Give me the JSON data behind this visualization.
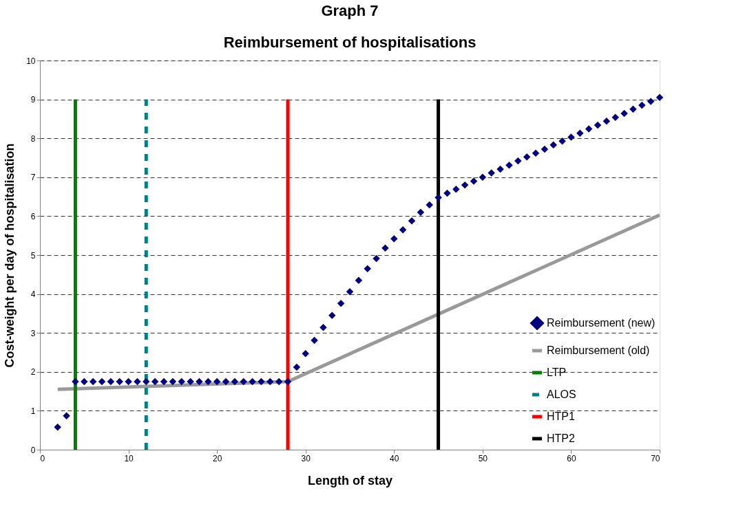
{
  "chart_data": {
    "type": "line",
    "title": "Graph 7",
    "subtitle": "Reimbursement of hospitalisations",
    "xlabel": "Length of stay",
    "ylabel": "Cost-weight per day of hospitalisation",
    "xlim": [
      0,
      70
    ],
    "xticks": [
      0,
      10,
      20,
      30,
      40,
      50,
      60,
      70
    ],
    "ylim": [
      0,
      10
    ],
    "yticks": [
      0,
      1,
      2,
      3,
      4,
      5,
      6,
      7,
      8,
      9,
      10
    ],
    "grid": "y",
    "legend": "bottom right",
    "series": [
      {
        "name": "Reimbursement (new)",
        "type": "scatter",
        "marker": "diamond",
        "color": "#000080",
        "x": [
          2,
          3,
          4,
          5,
          6,
          7,
          8,
          9,
          10,
          11,
          12,
          13,
          14,
          15,
          16,
          17,
          18,
          19,
          20,
          21,
          22,
          23,
          24,
          25,
          26,
          27,
          28,
          29,
          30,
          31,
          32,
          33,
          34,
          35,
          36,
          37,
          38,
          39,
          40,
          41,
          42,
          43,
          44,
          45,
          46,
          47,
          48,
          49,
          50,
          51,
          52,
          53,
          54,
          55,
          56,
          57,
          58,
          59,
          60,
          61,
          62,
          63,
          64,
          65,
          66,
          67,
          68,
          69,
          70
        ],
        "values": [
          0.58,
          0.87,
          1.75,
          1.75,
          1.75,
          1.75,
          1.75,
          1.75,
          1.75,
          1.75,
          1.75,
          1.75,
          1.75,
          1.75,
          1.75,
          1.75,
          1.75,
          1.75,
          1.75,
          1.75,
          1.75,
          1.75,
          1.75,
          1.75,
          1.75,
          1.75,
          1.75,
          2.12,
          2.47,
          2.81,
          3.14,
          3.45,
          3.76,
          4.06,
          4.35,
          4.65,
          4.91,
          5.18,
          5.42,
          5.65,
          5.88,
          6.1,
          6.29,
          6.48,
          6.59,
          6.69,
          6.8,
          6.9,
          7.0,
          7.11,
          7.21,
          7.31,
          7.42,
          7.52,
          7.62,
          7.72,
          7.83,
          7.93,
          8.03,
          8.13,
          8.24,
          8.34,
          8.44,
          8.54,
          8.64,
          8.75,
          8.85,
          8.95,
          9.05
        ]
      },
      {
        "name": "Reimbursement (old)",
        "color": "#999999",
        "x": [
          2,
          28,
          70
        ],
        "values": [
          1.55,
          1.75,
          6.03
        ]
      },
      {
        "name": "LTP",
        "color": "#008000",
        "x": [
          4,
          4
        ],
        "values": [
          0,
          9
        ]
      },
      {
        "name": "ALOS",
        "color": "#008080",
        "line_style": "dashed",
        "x": [
          12,
          12
        ],
        "values": [
          0,
          9
        ]
      },
      {
        "name": "HTP1",
        "color": "#ff0000",
        "x": [
          28,
          28
        ],
        "values": [
          0,
          9
        ]
      },
      {
        "name": "HTP2",
        "color": "#000000",
        "x": [
          45,
          45
        ],
        "values": [
          0,
          9
        ]
      }
    ]
  }
}
